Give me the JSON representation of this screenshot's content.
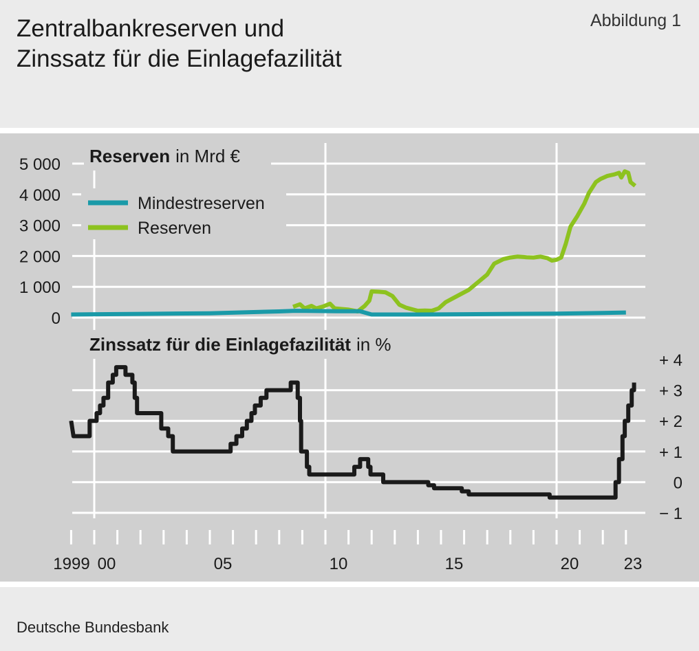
{
  "title_line1": "Zentralbankreserven und",
  "title_line2": "Zinssatz für die Einlagefazilität",
  "figure_label": "Abbildung 1",
  "source": "Deutsche Bundesbank",
  "colors": {
    "mindestreserven": "#1a9aa8",
    "reserven": "#8dc21f",
    "zinssatz": "#1a1a1a",
    "panel": "#d0d0d0",
    "grid": "#ffffff"
  },
  "chart_data": [
    {
      "type": "line",
      "title_bold": "Reserven",
      "title_unit": "in Mrd €",
      "ylabel": "Mrd €",
      "ylim": [
        0,
        5000
      ],
      "yticks": [
        0,
        1000,
        2000,
        3000,
        4000,
        5000
      ],
      "ytick_labels": [
        "0",
        "1 000",
        "2 000",
        "3 000",
        "4 000",
        "5 000"
      ],
      "grid": true,
      "legend_position": "top-left",
      "series": [
        {
          "name": "Mindestreserven",
          "color": "#1a9aa8",
          "points": [
            [
              1999.0,
              100
            ],
            [
              2002.0,
              120
            ],
            [
              2005.0,
              140
            ],
            [
              2008.0,
              200
            ],
            [
              2008.7,
              220
            ],
            [
              2009.5,
              215
            ],
            [
              2010.5,
              205
            ],
            [
              2011.5,
              205
            ],
            [
              2012.0,
              100
            ],
            [
              2013.0,
              100
            ],
            [
              2014.0,
              100
            ],
            [
              2016.0,
              110
            ],
            [
              2018.0,
              120
            ],
            [
              2020.0,
              130
            ],
            [
              2022.0,
              150
            ],
            [
              2023.0,
              165
            ]
          ]
        },
        {
          "name": "Reserven",
          "color": "#8dc21f",
          "points": [
            [
              2008.6,
              350
            ],
            [
              2008.9,
              430
            ],
            [
              2009.1,
              300
            ],
            [
              2009.4,
              380
            ],
            [
              2009.6,
              300
            ],
            [
              2009.9,
              360
            ],
            [
              2010.2,
              450
            ],
            [
              2010.4,
              300
            ],
            [
              2011.0,
              260
            ],
            [
              2011.4,
              200
            ],
            [
              2011.7,
              380
            ],
            [
              2011.9,
              550
            ],
            [
              2012.0,
              850
            ],
            [
              2012.3,
              840
            ],
            [
              2012.6,
              820
            ],
            [
              2012.9,
              700
            ],
            [
              2013.2,
              420
            ],
            [
              2013.5,
              320
            ],
            [
              2013.8,
              260
            ],
            [
              2014.0,
              220
            ],
            [
              2014.3,
              230
            ],
            [
              2014.6,
              220
            ],
            [
              2014.9,
              300
            ],
            [
              2015.2,
              500
            ],
            [
              2015.5,
              620
            ],
            [
              2015.8,
              740
            ],
            [
              2016.2,
              900
            ],
            [
              2016.6,
              1150
            ],
            [
              2017.0,
              1400
            ],
            [
              2017.3,
              1750
            ],
            [
              2017.7,
              1900
            ],
            [
              2018.0,
              1950
            ],
            [
              2018.3,
              1980
            ],
            [
              2018.7,
              1960
            ],
            [
              2019.0,
              1950
            ],
            [
              2019.3,
              1980
            ],
            [
              2019.6,
              1930
            ],
            [
              2019.8,
              1850
            ],
            [
              2020.0,
              1880
            ],
            [
              2020.2,
              1950
            ],
            [
              2020.4,
              2400
            ],
            [
              2020.6,
              2950
            ],
            [
              2020.9,
              3300
            ],
            [
              2021.2,
              3700
            ],
            [
              2021.4,
              4050
            ],
            [
              2021.7,
              4400
            ],
            [
              2021.9,
              4500
            ],
            [
              2022.2,
              4600
            ],
            [
              2022.5,
              4650
            ],
            [
              2022.7,
              4700
            ],
            [
              2022.8,
              4550
            ],
            [
              2022.95,
              4750
            ],
            [
              2023.1,
              4700
            ],
            [
              2023.2,
              4400
            ],
            [
              2023.4,
              4280
            ]
          ]
        }
      ]
    },
    {
      "type": "line",
      "title_bold": "Zinssatz für die Einlagefazilität",
      "title_unit": "in %",
      "ylabel": "%",
      "ylim": [
        -1,
        4
      ],
      "yticks": [
        -1,
        0,
        1,
        2,
        3,
        4
      ],
      "ytick_labels": [
        "− 1",
        "0",
        "+ 1",
        "+ 2",
        "+ 3",
        "+ 4"
      ],
      "grid": true,
      "series": [
        {
          "name": "Zinssatz für die Einlagefazilität",
          "color": "#1a1a1a",
          "points": [
            [
              1999.0,
              2.0
            ],
            [
              1999.1,
              1.5
            ],
            [
              1999.8,
              1.5
            ],
            [
              1999.8,
              2.0
            ],
            [
              2000.1,
              2.0
            ],
            [
              2000.1,
              2.25
            ],
            [
              2000.25,
              2.25
            ],
            [
              2000.25,
              2.5
            ],
            [
              2000.4,
              2.5
            ],
            [
              2000.4,
              2.75
            ],
            [
              2000.6,
              2.75
            ],
            [
              2000.6,
              3.25
            ],
            [
              2000.8,
              3.25
            ],
            [
              2000.8,
              3.5
            ],
            [
              2000.95,
              3.5
            ],
            [
              2000.95,
              3.75
            ],
            [
              2001.35,
              3.75
            ],
            [
              2001.35,
              3.5
            ],
            [
              2001.65,
              3.5
            ],
            [
              2001.65,
              3.25
            ],
            [
              2001.75,
              3.25
            ],
            [
              2001.75,
              2.75
            ],
            [
              2001.85,
              2.75
            ],
            [
              2001.85,
              2.25
            ],
            [
              2002.9,
              2.25
            ],
            [
              2002.9,
              1.75
            ],
            [
              2003.2,
              1.75
            ],
            [
              2003.2,
              1.5
            ],
            [
              2003.4,
              1.5
            ],
            [
              2003.4,
              1.0
            ],
            [
              2005.9,
              1.0
            ],
            [
              2005.9,
              1.25
            ],
            [
              2006.15,
              1.25
            ],
            [
              2006.15,
              1.5
            ],
            [
              2006.4,
              1.5
            ],
            [
              2006.4,
              1.75
            ],
            [
              2006.6,
              1.75
            ],
            [
              2006.6,
              2.0
            ],
            [
              2006.8,
              2.0
            ],
            [
              2006.8,
              2.25
            ],
            [
              2006.95,
              2.25
            ],
            [
              2006.95,
              2.5
            ],
            [
              2007.2,
              2.5
            ],
            [
              2007.2,
              2.75
            ],
            [
              2007.45,
              2.75
            ],
            [
              2007.45,
              3.0
            ],
            [
              2008.5,
              3.0
            ],
            [
              2008.5,
              3.25
            ],
            [
              2008.8,
              3.25
            ],
            [
              2008.8,
              2.75
            ],
            [
              2008.9,
              2.75
            ],
            [
              2008.9,
              2.0
            ],
            [
              2008.95,
              2.0
            ],
            [
              2008.95,
              1.0
            ],
            [
              2009.2,
              1.0
            ],
            [
              2009.2,
              0.5
            ],
            [
              2009.3,
              0.5
            ],
            [
              2009.3,
              0.25
            ],
            [
              2011.25,
              0.25
            ],
            [
              2011.25,
              0.5
            ],
            [
              2011.5,
              0.5
            ],
            [
              2011.5,
              0.75
            ],
            [
              2011.85,
              0.75
            ],
            [
              2011.85,
              0.5
            ],
            [
              2011.95,
              0.5
            ],
            [
              2011.95,
              0.25
            ],
            [
              2012.5,
              0.25
            ],
            [
              2012.5,
              0.0
            ],
            [
              2014.45,
              0.0
            ],
            [
              2014.45,
              -0.1
            ],
            [
              2014.7,
              -0.1
            ],
            [
              2014.7,
              -0.2
            ],
            [
              2015.9,
              -0.2
            ],
            [
              2015.9,
              -0.3
            ],
            [
              2016.2,
              -0.3
            ],
            [
              2016.2,
              -0.4
            ],
            [
              2019.7,
              -0.4
            ],
            [
              2019.7,
              -0.5
            ],
            [
              2022.55,
              -0.5
            ],
            [
              2022.55,
              0.0
            ],
            [
              2022.7,
              0.0
            ],
            [
              2022.7,
              0.75
            ],
            [
              2022.85,
              0.75
            ],
            [
              2022.85,
              1.5
            ],
            [
              2022.95,
              1.5
            ],
            [
              2022.95,
              2.0
            ],
            [
              2023.1,
              2.0
            ],
            [
              2023.1,
              2.5
            ],
            [
              2023.25,
              2.5
            ],
            [
              2023.25,
              3.0
            ],
            [
              2023.35,
              3.0
            ],
            [
              2023.35,
              3.25
            ]
          ]
        }
      ]
    }
  ],
  "x_axis": {
    "xlim": [
      1998.9,
      2023.9
    ],
    "tick_years": [
      1999,
      2000,
      2001,
      2002,
      2003,
      2004,
      2005,
      2006,
      2007,
      2008,
      2009,
      2010,
      2011,
      2012,
      2013,
      2014,
      2015,
      2016,
      2017,
      2018,
      2019,
      2020,
      2021,
      2022,
      2023
    ],
    "labels": [
      {
        "year": 1999,
        "text": "1999"
      },
      {
        "year": 2000,
        "text": "00"
      },
      {
        "year": 2005,
        "text": "05"
      },
      {
        "year": 2010,
        "text": "10"
      },
      {
        "year": 2015,
        "text": "15"
      },
      {
        "year": 2020,
        "text": "20"
      },
      {
        "year": 2023,
        "text": "23"
      }
    ]
  }
}
